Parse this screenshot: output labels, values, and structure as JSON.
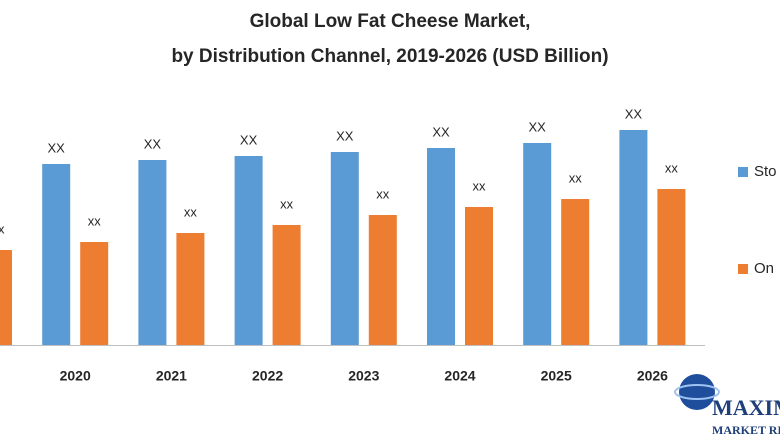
{
  "chart_data": {
    "type": "bar",
    "title": [
      "Global Low Fat Cheese Market,",
      "by Distribution Channel, 2019-2026 (USD Billion)"
    ],
    "categories": [
      null,
      "2020",
      "2021",
      "2022",
      "2023",
      "2024",
      "2025",
      "2026"
    ],
    "series": [
      {
        "name": "Sto",
        "color": "#5b9bd5",
        "values": [
          null,
          181,
          185,
          189,
          193,
          197,
          202,
          215
        ],
        "value_labels": [
          null,
          "XX",
          "XX",
          "XX",
          "XX",
          "XX",
          "XX",
          "XX"
        ]
      },
      {
        "name": "On",
        "color": "#ed7d31",
        "values": [
          95,
          103,
          112,
          120,
          130,
          138,
          146,
          156
        ],
        "value_labels": [
          "xx",
          "xx",
          "xx",
          "xx",
          "xx",
          "xx",
          "xx",
          "xx"
        ]
      }
    ],
    "legend": "right"
  },
  "watermark": {
    "line1": "MAXIM",
    "line2": "MARKET RE"
  }
}
